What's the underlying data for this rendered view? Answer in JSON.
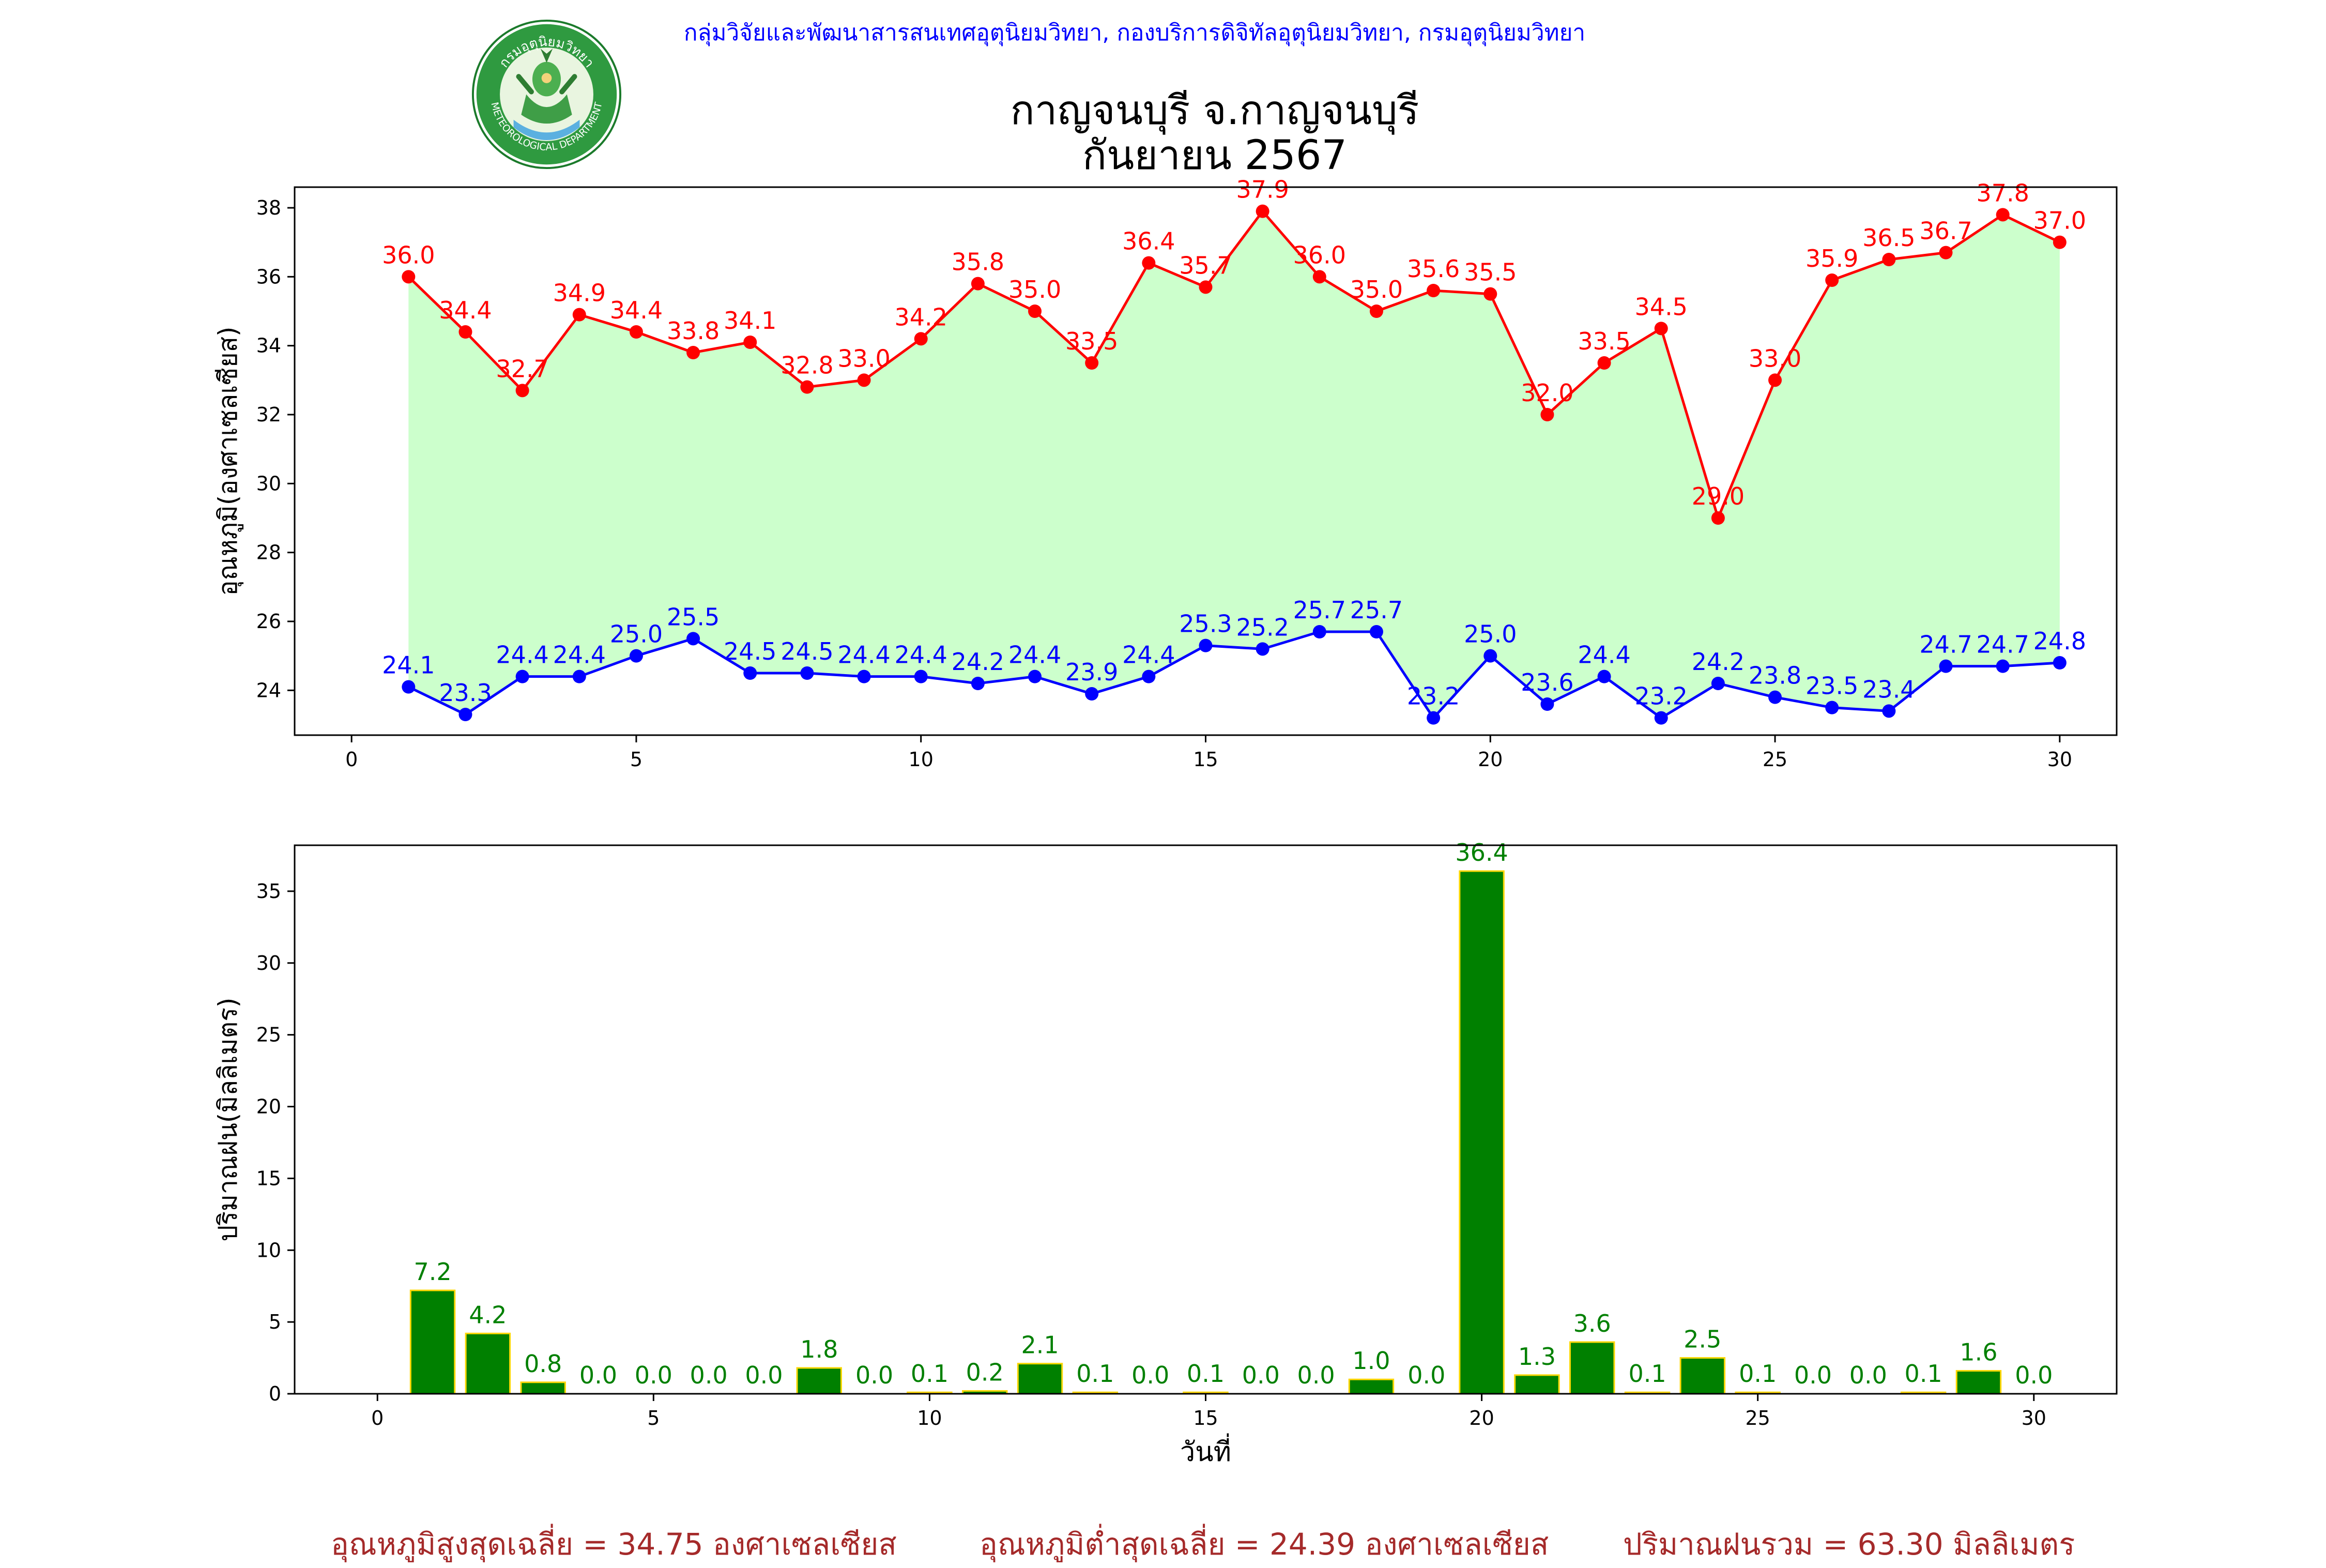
{
  "header": {
    "credit": "กลุ่มวิจัยและพัฒนาสารสนเทศอุตุนิยมวิทยา, กองบริการดิจิทัลอุตุนิยมวิทยา, กรมอุตุนิยมวิทยา",
    "title_line1": "กาญจนบุรี จ.กาญจนบุรี",
    "title_line2": "กันยายน 2567",
    "logo_text_top": "กรมอุตุนิยมวิทยา",
    "logo_text_bottom": "METEOROLOGICAL DEPARTMENT"
  },
  "summary": {
    "avg_max": "อุณหภูมิสูงสุดเฉลี่ย = 34.75 องศาเซลเซียส",
    "avg_min": "อุณหภูมิต่ำสุดเฉลี่ย = 24.39 องศาเซลเซียส",
    "total_rain": "ปริมาณฝนรวม = 63.30 มิลลิเมตร"
  },
  "chart_data": [
    {
      "type": "line",
      "ylabel": "อุณหภูมิ(องศาเซลเซียส)",
      "xlim": [
        -1,
        31
      ],
      "ylim": [
        22.7,
        38.6
      ],
      "xticks": [
        0,
        5,
        10,
        15,
        20,
        25,
        30
      ],
      "yticks": [
        24,
        26,
        28,
        30,
        32,
        34,
        36,
        38
      ],
      "x": [
        1,
        2,
        3,
        4,
        5,
        6,
        7,
        8,
        9,
        10,
        11,
        12,
        13,
        14,
        15,
        16,
        17,
        18,
        19,
        20,
        21,
        22,
        23,
        24,
        25,
        26,
        27,
        28,
        29,
        30
      ],
      "series": [
        {
          "color": "#ff0000",
          "values": [
            36.0,
            34.4,
            32.7,
            34.9,
            34.4,
            33.8,
            34.1,
            32.8,
            33.0,
            34.2,
            35.8,
            35.0,
            33.5,
            36.4,
            35.7,
            37.9,
            36.0,
            35.0,
            35.6,
            35.5,
            32.0,
            33.5,
            34.5,
            29.0,
            33.0,
            35.9,
            36.5,
            36.7,
            37.8,
            37.0
          ]
        },
        {
          "color": "#0000ff",
          "values": [
            24.1,
            23.3,
            24.4,
            24.4,
            25.0,
            25.5,
            24.5,
            24.5,
            24.4,
            24.4,
            24.2,
            24.4,
            23.9,
            24.4,
            25.3,
            25.2,
            25.7,
            25.7,
            23.2,
            25.0,
            23.6,
            24.4,
            23.2,
            24.2,
            23.8,
            23.5,
            23.4,
            24.7,
            24.7,
            24.8
          ]
        }
      ],
      "fill_color": "#ccffcc",
      "grid": false
    },
    {
      "type": "bar",
      "ylabel": "ปริมาณฝน(มิลลิเมตร)",
      "xlabel": "วันที่",
      "xlim": [
        -1.5,
        31.5
      ],
      "ylim": [
        0,
        38.2
      ],
      "xticks": [
        0,
        5,
        10,
        15,
        20,
        25,
        30
      ],
      "yticks": [
        0,
        5,
        10,
        15,
        20,
        25,
        30,
        35
      ],
      "x": [
        1,
        2,
        3,
        4,
        5,
        6,
        7,
        8,
        9,
        10,
        11,
        12,
        13,
        14,
        15,
        16,
        17,
        18,
        19,
        20,
        21,
        22,
        23,
        24,
        25,
        26,
        27,
        28,
        29,
        30
      ],
      "values": [
        7.2,
        4.2,
        0.8,
        0.0,
        0.0,
        0.0,
        0.0,
        1.8,
        0.0,
        0.1,
        0.2,
        2.1,
        0.1,
        0.0,
        0.1,
        0.0,
        0.0,
        1.0,
        0.0,
        36.4,
        1.3,
        3.6,
        0.1,
        2.5,
        0.1,
        0.0,
        0.0,
        0.1,
        1.6,
        0.0
      ],
      "bar_color": "#008000",
      "edge_color": "#ffd700",
      "label_color": "#008000",
      "grid": false
    }
  ]
}
